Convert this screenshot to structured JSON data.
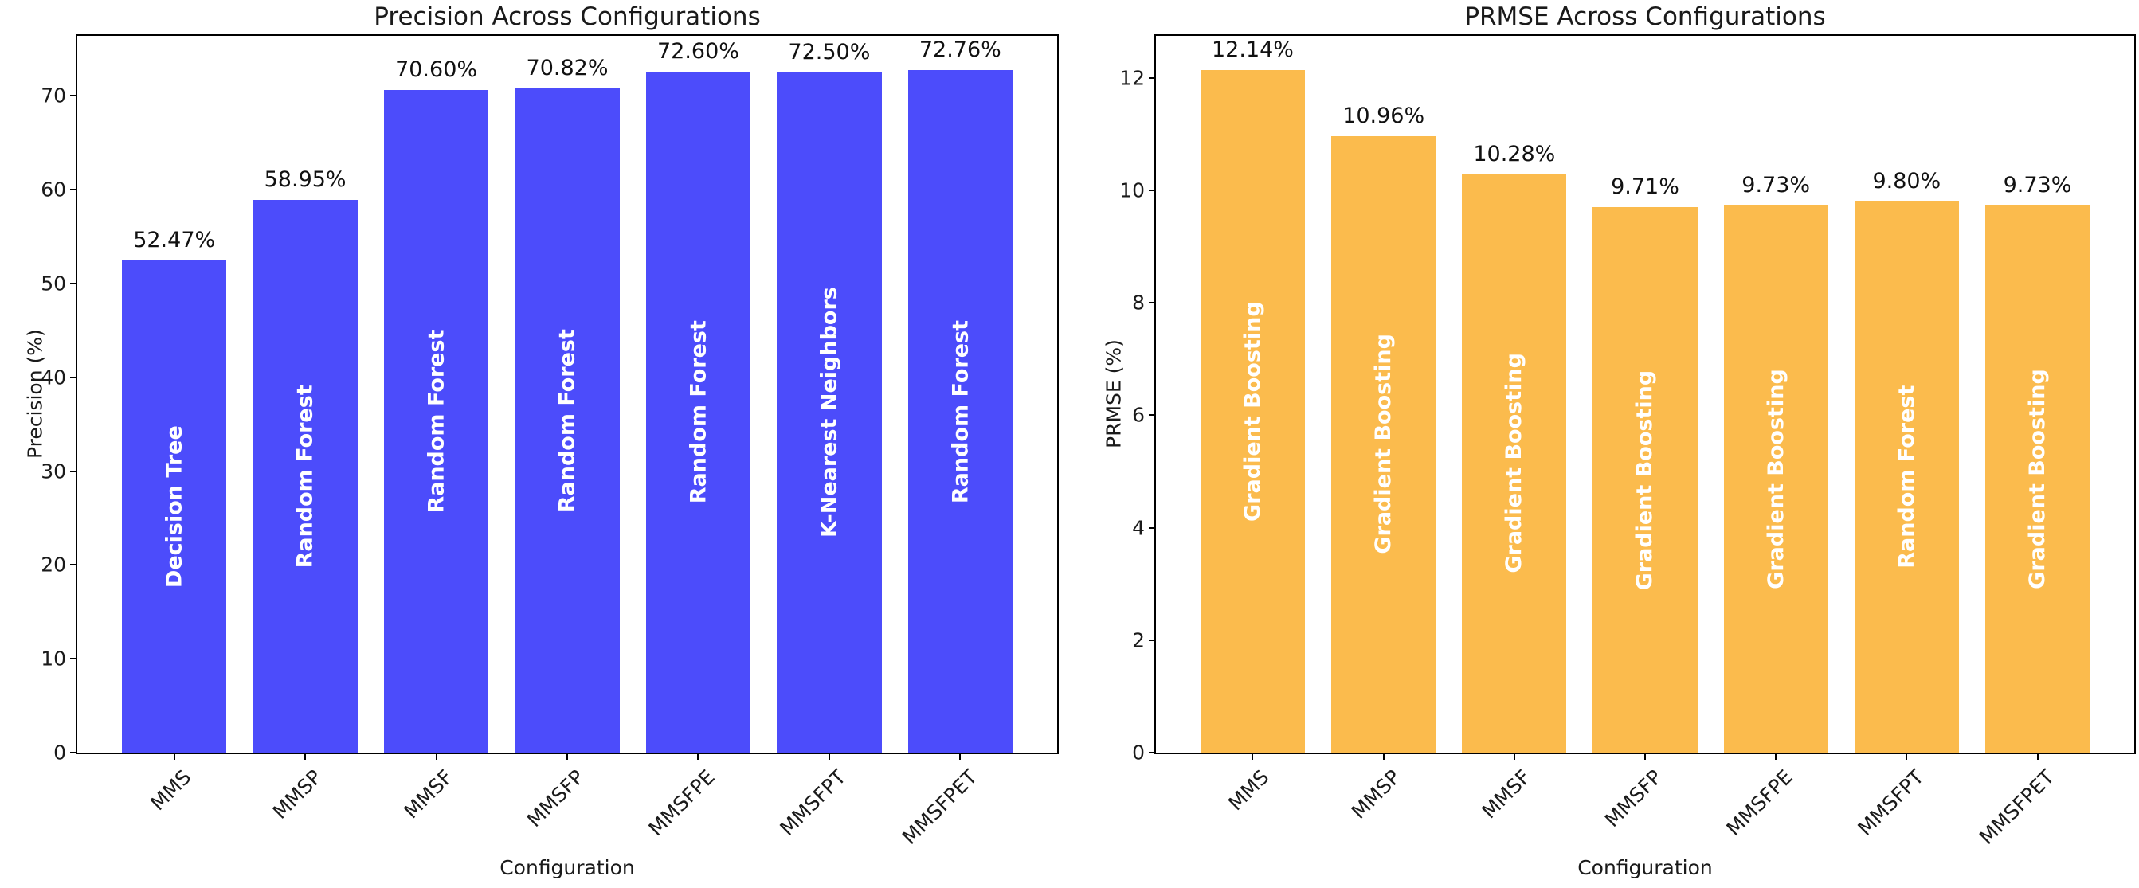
{
  "chart_data": [
    {
      "type": "bar",
      "title": "Precision Across Configurations",
      "xlabel": "Configuration",
      "ylabel": "Precision (%)",
      "categories": [
        "MMS",
        "MMSP",
        "MMSF",
        "MMSFP",
        "MMSFPE",
        "MMSFPT",
        "MMSFPET"
      ],
      "values": [
        52.47,
        58.95,
        70.6,
        70.82,
        72.6,
        72.5,
        72.76
      ],
      "value_labels": [
        "52.47%",
        "58.95%",
        "70.60%",
        "70.82%",
        "72.60%",
        "72.50%",
        "72.76%"
      ],
      "bar_labels": [
        "Decision Tree",
        "Random Forest",
        "Random Forest",
        "Random Forest",
        "Random Forest",
        "K-Nearest Neighbors",
        "Random Forest"
      ],
      "yticks": [
        0,
        10,
        20,
        30,
        40,
        50,
        60,
        70
      ],
      "ylim": [
        0,
        76.4
      ],
      "bar_color": "#4c4cfb",
      "bar_label_color": "#ffffff",
      "grid": false,
      "legend": "none"
    },
    {
      "type": "bar",
      "title": "PRMSE Across Configurations",
      "xlabel": "Configuration",
      "ylabel": "PRMSE (%)",
      "categories": [
        "MMS",
        "MMSP",
        "MMSF",
        "MMSFP",
        "MMSFPE",
        "MMSFPT",
        "MMSFPET"
      ],
      "values": [
        12.14,
        10.96,
        10.28,
        9.71,
        9.73,
        9.8,
        9.73
      ],
      "value_labels": [
        "12.14%",
        "10.96%",
        "10.28%",
        "9.71%",
        "9.73%",
        "9.80%",
        "9.73%"
      ],
      "bar_labels": [
        "Gradient Boosting",
        "Gradient Boosting",
        "Gradient Boosting",
        "Gradient Boosting",
        "Gradient Boosting",
        "Random Forest",
        "Gradient Boosting"
      ],
      "yticks": [
        0,
        2,
        4,
        6,
        8,
        10,
        12
      ],
      "ylim": [
        0,
        12.75
      ],
      "bar_color": "#fbbb4d",
      "bar_label_color": "#ffffff",
      "grid": false,
      "legend": "none"
    }
  ]
}
